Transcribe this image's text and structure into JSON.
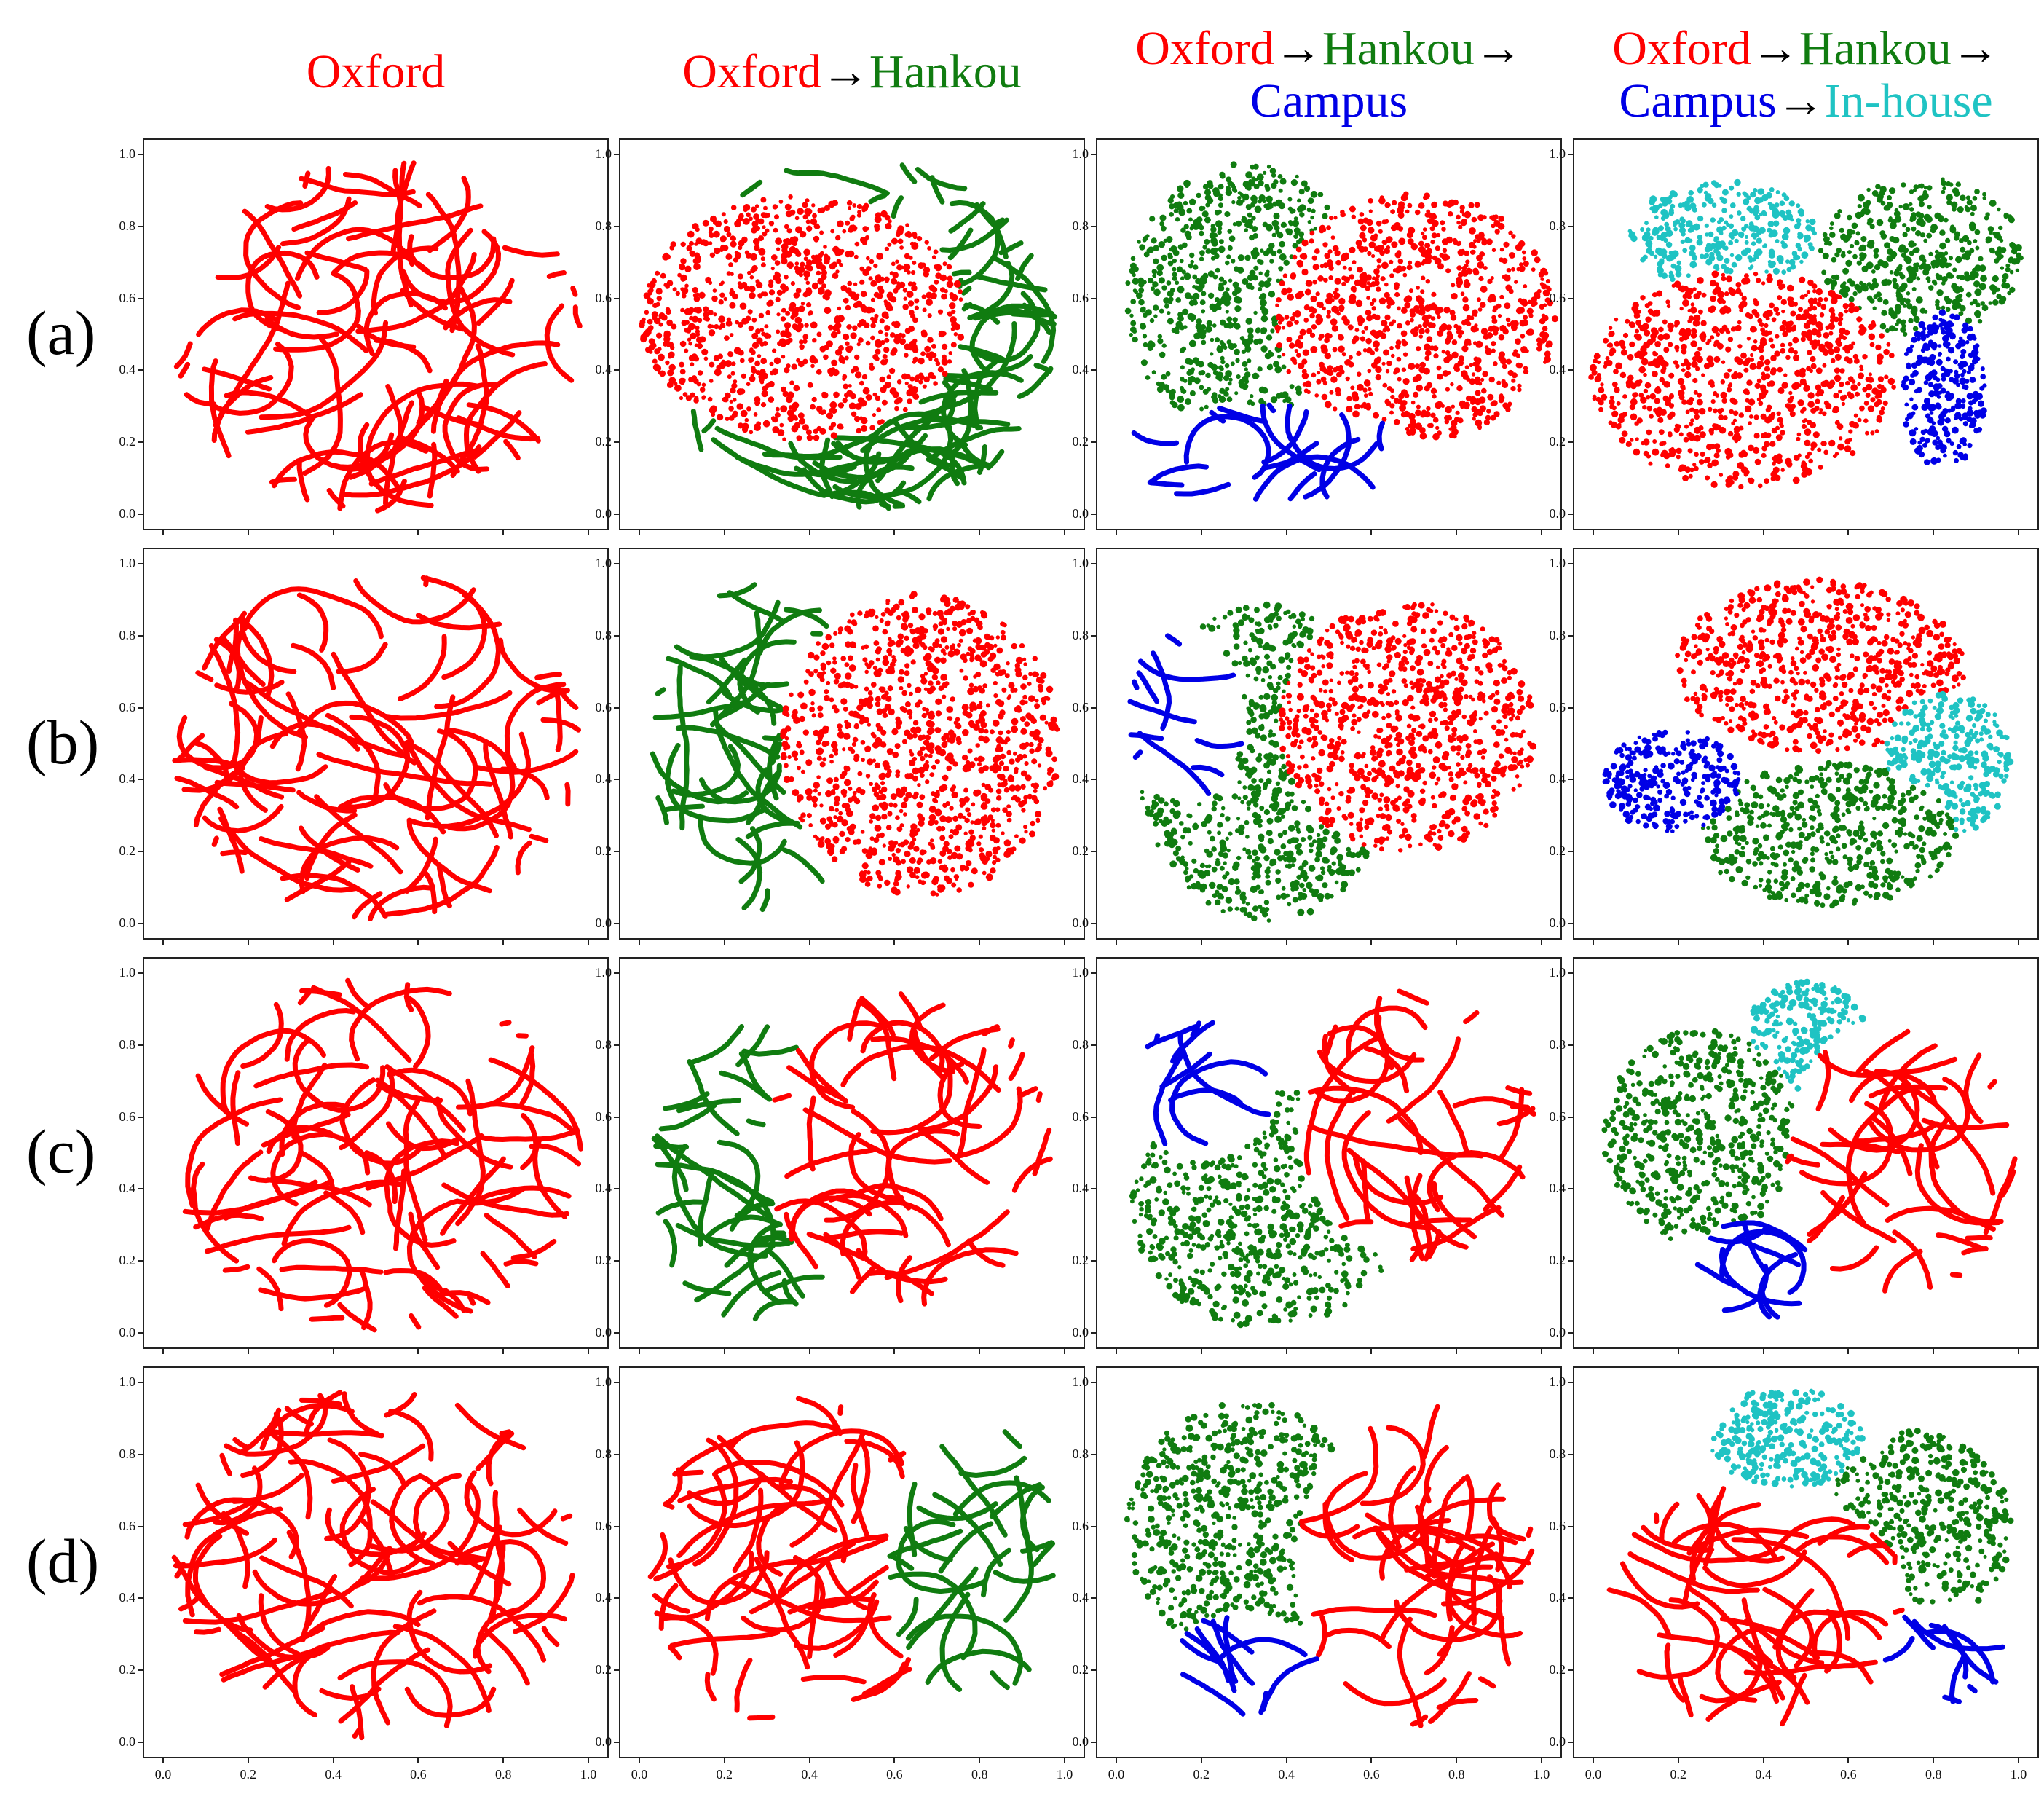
{
  "colors": {
    "oxford": "#ff0000",
    "hankou": "#107c10",
    "campus": "#0000e6",
    "inhouse": "#1fc3c3"
  },
  "column_titles": [
    [
      [
        {
          "text": "Oxford",
          "c": "oxford"
        }
      ]
    ],
    [
      [
        {
          "text": "Oxford",
          "c": "oxford"
        },
        {
          "text": "→",
          "c": "arrow"
        },
        {
          "text": "Hankou",
          "c": "hankou"
        }
      ]
    ],
    [
      [
        {
          "text": "Oxford",
          "c": "oxford"
        },
        {
          "text": "→",
          "c": "arrow"
        },
        {
          "text": "Hankou",
          "c": "hankou"
        },
        {
          "text": "→",
          "c": "arrow"
        }
      ],
      [
        {
          "text": "Campus",
          "c": "campus"
        }
      ]
    ],
    [
      [
        {
          "text": "Oxford",
          "c": "oxford"
        },
        {
          "text": "→",
          "c": "arrow"
        },
        {
          "text": "Hankou",
          "c": "hankou"
        },
        {
          "text": "→",
          "c": "arrow"
        }
      ],
      [
        {
          "text": "Campus",
          "c": "campus"
        },
        {
          "text": "→",
          "c": "arrow"
        },
        {
          "text": "In-house",
          "c": "inhouse"
        }
      ]
    ]
  ],
  "row_labels": [
    "(a)",
    "(b)",
    "(c)",
    "(d)"
  ],
  "chart_data": {
    "type": "scatter",
    "xlim": [
      0.0,
      1.0
    ],
    "ylim": [
      0.0,
      1.0
    ],
    "x_ticks": [
      "0.0",
      "0.2",
      "0.4",
      "0.6",
      "0.8",
      "1.0"
    ],
    "y_ticks": [
      "0.0",
      "0.2",
      "0.4",
      "0.6",
      "0.8",
      "1.0"
    ],
    "grid": false,
    "rows": [
      {
        "label": "(a)",
        "panels": [
          {
            "regions": [
              {
                "c": "oxford",
                "cx": 0.5,
                "cy": 0.5,
                "rx": 0.48,
                "ry": 0.49,
                "style": "curvy"
              }
            ]
          },
          {
            "regions": [
              {
                "c": "hankou",
                "cx": 0.5,
                "cy": 0.5,
                "rx": 0.48,
                "ry": 0.49,
                "style": "curvy"
              },
              {
                "c": "oxford",
                "cx": 0.38,
                "cy": 0.55,
                "rx": 0.38,
                "ry": 0.34,
                "style": "dense"
              }
            ]
          },
          {
            "regions": [
              {
                "c": "hankou",
                "cx": 0.3,
                "cy": 0.6,
                "rx": 0.28,
                "ry": 0.38,
                "style": "dense"
              },
              {
                "c": "oxford",
                "cx": 0.7,
                "cy": 0.55,
                "rx": 0.33,
                "ry": 0.35,
                "style": "dense"
              },
              {
                "c": "campus",
                "cx": 0.35,
                "cy": 0.17,
                "rx": 0.35,
                "ry": 0.14,
                "style": "curvy"
              }
            ]
          },
          {
            "regions": [
              {
                "c": "inhouse",
                "cx": 0.3,
                "cy": 0.78,
                "rx": 0.22,
                "ry": 0.15,
                "style": "dense"
              },
              {
                "c": "hankou",
                "cx": 0.77,
                "cy": 0.72,
                "rx": 0.24,
                "ry": 0.22,
                "style": "dense"
              },
              {
                "c": "oxford",
                "cx": 0.35,
                "cy": 0.38,
                "rx": 0.36,
                "ry": 0.3,
                "style": "dense"
              },
              {
                "c": "campus",
                "cx": 0.82,
                "cy": 0.35,
                "rx": 0.1,
                "ry": 0.22,
                "style": "dense"
              }
            ]
          }
        ]
      },
      {
        "label": "(b)",
        "panels": [
          {
            "regions": [
              {
                "c": "oxford",
                "cx": 0.5,
                "cy": 0.5,
                "rx": 0.48,
                "ry": 0.49,
                "style": "curvy"
              }
            ]
          },
          {
            "regions": [
              {
                "c": "hankou",
                "cx": 0.28,
                "cy": 0.5,
                "rx": 0.26,
                "ry": 0.46,
                "style": "curvy"
              },
              {
                "c": "oxford",
                "cx": 0.66,
                "cy": 0.5,
                "rx": 0.33,
                "ry": 0.42,
                "style": "dense"
              }
            ]
          },
          {
            "regions": [
              {
                "c": "hankou",
                "cx": 0.35,
                "cy": 0.45,
                "rx": 0.3,
                "ry": 0.44,
                "style": "dense"
              },
              {
                "c": "oxford",
                "cx": 0.68,
                "cy": 0.55,
                "rx": 0.3,
                "ry": 0.35,
                "style": "dense"
              },
              {
                "c": "campus",
                "cx": 0.16,
                "cy": 0.58,
                "rx": 0.14,
                "ry": 0.24,
                "style": "curvy"
              }
            ]
          },
          {
            "regions": [
              {
                "c": "oxford",
                "cx": 0.53,
                "cy": 0.72,
                "rx": 0.34,
                "ry": 0.24,
                "style": "dense"
              },
              {
                "c": "inhouse",
                "cx": 0.83,
                "cy": 0.45,
                "rx": 0.15,
                "ry": 0.2,
                "style": "dense"
              },
              {
                "c": "hankou",
                "cx": 0.55,
                "cy": 0.25,
                "rx": 0.3,
                "ry": 0.2,
                "style": "dense"
              },
              {
                "c": "campus",
                "cx": 0.18,
                "cy": 0.4,
                "rx": 0.16,
                "ry": 0.14,
                "style": "dense"
              }
            ]
          }
        ]
      },
      {
        "label": "(c)",
        "panels": [
          {
            "regions": [
              {
                "c": "oxford",
                "cx": 0.5,
                "cy": 0.5,
                "rx": 0.48,
                "ry": 0.49,
                "style": "curvy"
              }
            ]
          },
          {
            "regions": [
              {
                "c": "hankou",
                "cx": 0.26,
                "cy": 0.45,
                "rx": 0.24,
                "ry": 0.42,
                "style": "curvy"
              },
              {
                "c": "oxford",
                "cx": 0.63,
                "cy": 0.52,
                "rx": 0.34,
                "ry": 0.44,
                "style": "curvy"
              }
            ]
          },
          {
            "regions": [
              {
                "c": "hankou",
                "cx": 0.35,
                "cy": 0.35,
                "rx": 0.32,
                "ry": 0.33,
                "style": "dense"
              },
              {
                "c": "oxford",
                "cx": 0.7,
                "cy": 0.58,
                "rx": 0.28,
                "ry": 0.38,
                "style": "curvy"
              },
              {
                "c": "campus",
                "cx": 0.2,
                "cy": 0.68,
                "rx": 0.17,
                "ry": 0.2,
                "style": "curvy"
              }
            ]
          },
          {
            "regions": [
              {
                "c": "inhouse",
                "cx": 0.5,
                "cy": 0.82,
                "rx": 0.15,
                "ry": 0.16,
                "style": "dense"
              },
              {
                "c": "hankou",
                "cx": 0.25,
                "cy": 0.55,
                "rx": 0.23,
                "ry": 0.3,
                "style": "dense"
              },
              {
                "c": "oxford",
                "cx": 0.72,
                "cy": 0.5,
                "rx": 0.27,
                "ry": 0.4,
                "style": "curvy"
              },
              {
                "c": "campus",
                "cx": 0.38,
                "cy": 0.18,
                "rx": 0.15,
                "ry": 0.14,
                "style": "curvy"
              }
            ]
          }
        ]
      },
      {
        "label": "(d)",
        "panels": [
          {
            "regions": [
              {
                "c": "oxford",
                "cx": 0.5,
                "cy": 0.5,
                "rx": 0.48,
                "ry": 0.49,
                "style": "curvy"
              }
            ]
          },
          {
            "regions": [
              {
                "c": "oxford",
                "cx": 0.37,
                "cy": 0.5,
                "rx": 0.35,
                "ry": 0.46,
                "style": "curvy"
              },
              {
                "c": "hankou",
                "cx": 0.78,
                "cy": 0.5,
                "rx": 0.2,
                "ry": 0.4,
                "style": "curvy"
              }
            ]
          },
          {
            "regions": [
              {
                "c": "hankou",
                "cx": 0.3,
                "cy": 0.6,
                "rx": 0.28,
                "ry": 0.35,
                "style": "dense"
              },
              {
                "c": "oxford",
                "cx": 0.7,
                "cy": 0.5,
                "rx": 0.28,
                "ry": 0.45,
                "style": "curvy"
              },
              {
                "c": "campus",
                "cx": 0.3,
                "cy": 0.22,
                "rx": 0.17,
                "ry": 0.15,
                "style": "curvy"
              }
            ]
          },
          {
            "regions": [
              {
                "c": "inhouse",
                "cx": 0.45,
                "cy": 0.85,
                "rx": 0.18,
                "ry": 0.14,
                "style": "dense"
              },
              {
                "c": "hankou",
                "cx": 0.76,
                "cy": 0.6,
                "rx": 0.22,
                "ry": 0.27,
                "style": "dense"
              },
              {
                "c": "oxford",
                "cx": 0.38,
                "cy": 0.38,
                "rx": 0.36,
                "ry": 0.34,
                "style": "curvy"
              },
              {
                "c": "campus",
                "cx": 0.82,
                "cy": 0.25,
                "rx": 0.15,
                "ry": 0.14,
                "style": "curvy"
              }
            ]
          }
        ]
      }
    ]
  }
}
